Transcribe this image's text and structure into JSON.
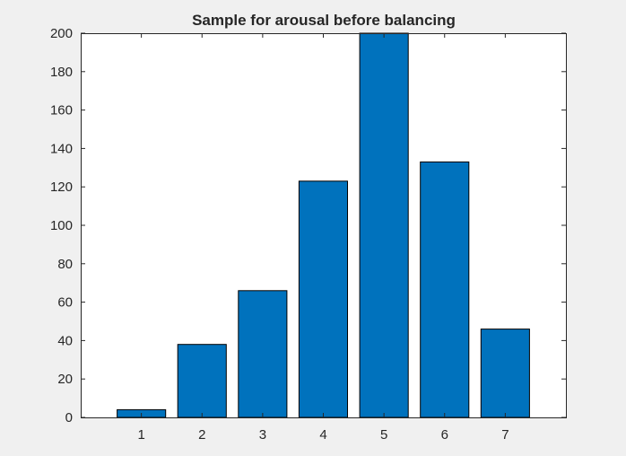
{
  "chart_data": {
    "type": "bar",
    "title": "Sample for arousal before balancing",
    "xlabel": "",
    "ylabel": "",
    "categories": [
      "1",
      "2",
      "3",
      "4",
      "5",
      "6",
      "7"
    ],
    "values": [
      4,
      38,
      66,
      123,
      200,
      133,
      46
    ],
    "xlim": [
      0,
      8
    ],
    "ylim": [
      0,
      200
    ],
    "yticks": [
      0,
      20,
      40,
      60,
      80,
      100,
      120,
      140,
      160,
      180,
      200
    ],
    "grid": false,
    "legend": "none",
    "bar_color": "#0072bd",
    "background": "#f0f0f0",
    "axes_color": "#262626"
  }
}
